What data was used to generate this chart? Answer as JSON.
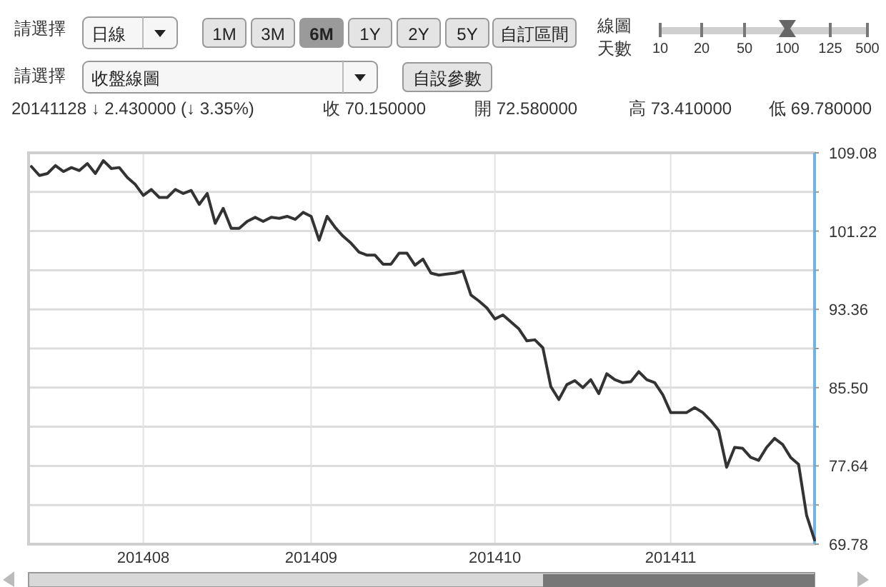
{
  "chart_data": {
    "type": "line",
    "categories": [
      null,
      null,
      null,
      null,
      null,
      null,
      null,
      null,
      null,
      null,
      null,
      null,
      null,
      null,
      "201408",
      null,
      null,
      null,
      null,
      null,
      null,
      null,
      null,
      null,
      null,
      null,
      null,
      null,
      null,
      null,
      null,
      null,
      null,
      null,
      null,
      "201409",
      null,
      null,
      null,
      null,
      null,
      null,
      null,
      null,
      null,
      null,
      null,
      null,
      null,
      null,
      null,
      null,
      null,
      null,
      null,
      null,
      null,
      null,
      "201410",
      null,
      null,
      null,
      null,
      null,
      null,
      null,
      null,
      null,
      null,
      null,
      null,
      null,
      null,
      null,
      null,
      null,
      null,
      null,
      null,
      null,
      "201411",
      null,
      null,
      null,
      null,
      null,
      null,
      null,
      null,
      null,
      null,
      null,
      null,
      null,
      null,
      null,
      null,
      null,
      null
    ],
    "series": [
      {
        "color": "#333333",
        "values": [
          107.7,
          106.8,
          107.0,
          107.8,
          107.2,
          107.6,
          107.3,
          108.0,
          107.0,
          108.3,
          107.5,
          107.6,
          106.6,
          105.9,
          104.8,
          105.4,
          104.6,
          104.6,
          105.4,
          105.0,
          105.3,
          103.9,
          105.0,
          102.0,
          103.5,
          101.5,
          101.5,
          102.2,
          102.6,
          102.2,
          102.6,
          102.5,
          102.7,
          102.4,
          103.1,
          102.7,
          100.3,
          102.7,
          101.6,
          100.7,
          100.0,
          99.1,
          98.8,
          98.8,
          97.9,
          97.9,
          99.0,
          99.0,
          97.8,
          98.4,
          97.0,
          96.8,
          96.9,
          97.0,
          97.2,
          94.8,
          94.2,
          93.5,
          92.4,
          92.8,
          92.1,
          91.4,
          90.2,
          90.3,
          89.5,
          85.6,
          84.3,
          85.8,
          86.2,
          85.5,
          86.3,
          84.9,
          86.9,
          86.3,
          86.0,
          86.1,
          87.1,
          86.3,
          86.0,
          84.8,
          83.0,
          83.0,
          83.0,
          83.5,
          83.0,
          82.2,
          81.2,
          77.5,
          79.5,
          79.4,
          78.5,
          78.2,
          79.5,
          80.4,
          79.8,
          78.5,
          77.8,
          72.7,
          70.2
        ]
      }
    ],
    "ylim": [
      69.78,
      109.08
    ],
    "yticks": [
      69.78,
      {
        "value": 73.71,
        "label": null
      },
      77.64,
      {
        "value": 81.57,
        "label": null
      },
      {
        "value": 85.5,
        "label": "85.50"
      },
      {
        "value": 89.43,
        "label": null
      },
      93.36,
      {
        "value": 97.29,
        "label": null
      },
      101.22,
      {
        "value": 105.15,
        "label": null
      },
      109.08
    ],
    "grid": true,
    "line_style": "solid",
    "marker": "none",
    "annotations": [
      "請選擇",
      "日線",
      "1M",
      "3M",
      "6M",
      "1Y",
      "2Y",
      "5Y",
      "自訂區間",
      "線圖",
      "天數",
      "10",
      "20",
      "50",
      "100",
      "125",
      "500",
      "請選擇",
      "收盤線圖",
      "自設參數",
      "20141128  ↓ 2.430000 (↓ 3.35%)",
      "收 70.150000",
      "開 72.580000",
      "高 73.410000",
      "低 69.780000"
    ]
  }
}
